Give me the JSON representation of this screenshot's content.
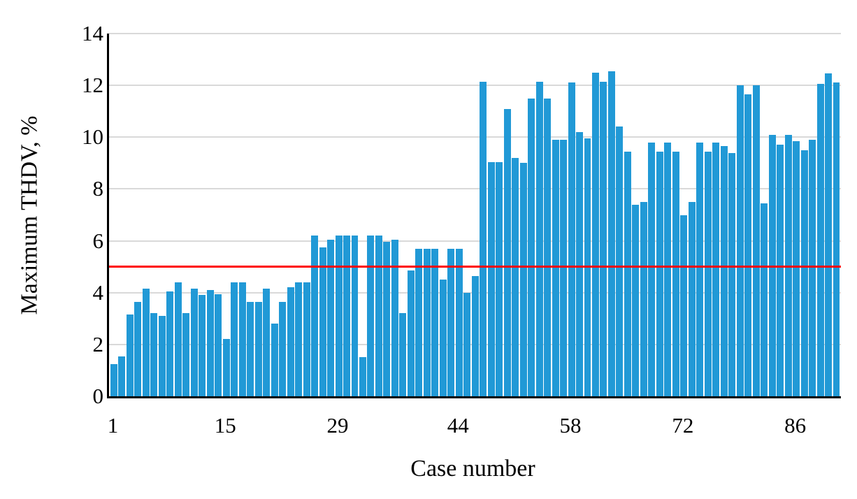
{
  "figure": {
    "y_axis_title": "Maximum THDV, %",
    "x_axis_title": "Case number"
  },
  "chart_data": {
    "type": "bar",
    "title": "",
    "xlabel": "Case number",
    "ylabel": "Maximum THDV, %",
    "x_first_case": 1,
    "n_cases": 91,
    "values": [
      1.25,
      1.55,
      3.15,
      3.65,
      4.15,
      3.2,
      3.1,
      4.05,
      4.4,
      3.2,
      4.15,
      3.9,
      4.1,
      3.95,
      2.2,
      4.4,
      4.4,
      3.65,
      3.65,
      4.15,
      2.8,
      3.65,
      4.2,
      4.4,
      4.4,
      6.2,
      5.75,
      6.05,
      6.2,
      6.2,
      6.2,
      1.5,
      6.2,
      6.2,
      5.95,
      6.05,
      3.2,
      4.85,
      5.7,
      5.7,
      5.7,
      4.5,
      5.7,
      5.7,
      4.0,
      4.65,
      12.15,
      9.05,
      9.05,
      11.1,
      9.2,
      9.0,
      11.5,
      12.15,
      11.5,
      9.9,
      9.9,
      12.1,
      10.2,
      9.95,
      12.5,
      12.15,
      12.55,
      10.4,
      9.45,
      7.4,
      7.5,
      9.8,
      9.45,
      9.8,
      9.45,
      7.0,
      7.5,
      9.8,
      9.45,
      9.8,
      9.65,
      9.4,
      12.0,
      11.65,
      12.0,
      7.45,
      10.1,
      9.7,
      10.1,
      9.85,
      9.5,
      9.9,
      12.05,
      12.45,
      12.1
    ],
    "x_tick_cases": [
      1,
      15,
      29,
      44,
      58,
      72,
      86
    ],
    "x_tick_labels": [
      "1",
      "15",
      "29",
      "44",
      "58",
      "72",
      "86"
    ],
    "y_ticks": [
      0,
      2,
      4,
      6,
      8,
      10,
      12,
      14
    ],
    "ylim": [
      0,
      14
    ],
    "grid": "horizontal",
    "legend": "none",
    "threshold_line": {
      "value": 5,
      "color": "#FF0000"
    },
    "bar_color": "#2199D6",
    "gridline_color": "#D9D9D9",
    "axis_color": "#000000",
    "background": "#FFFFFF"
  }
}
